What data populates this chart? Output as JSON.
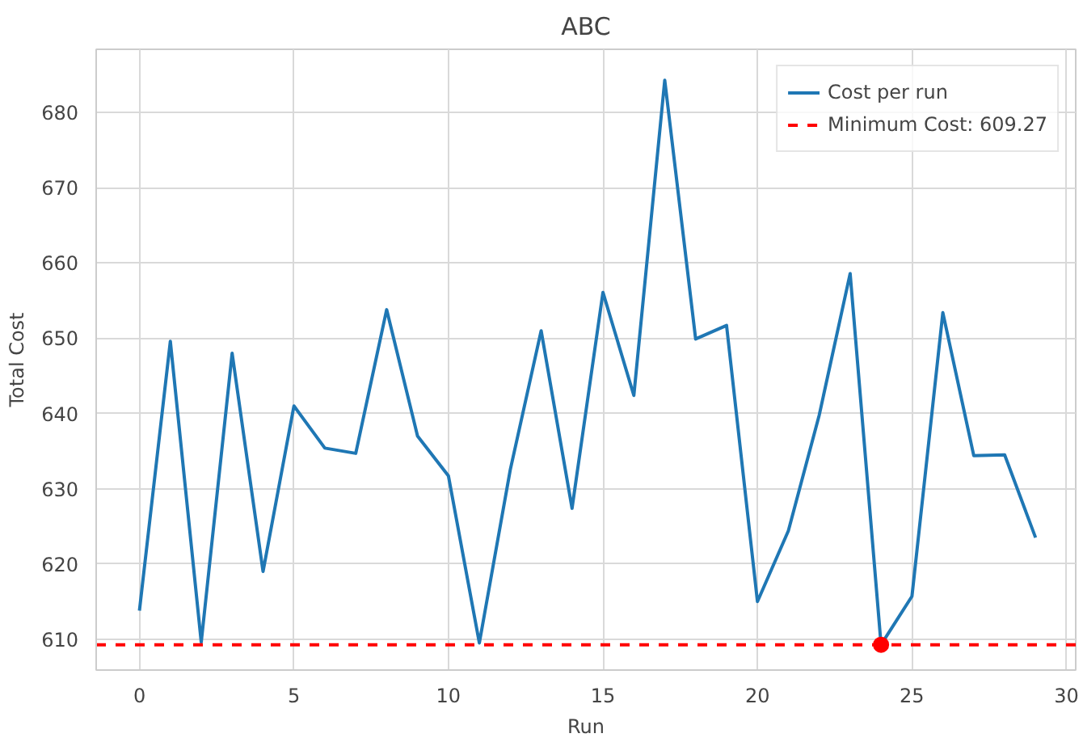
{
  "chart_data": {
    "type": "line",
    "title": "ABC",
    "xlabel": "Run",
    "ylabel": "Total Cost",
    "x": [
      0,
      1,
      2,
      3,
      4,
      5,
      6,
      7,
      8,
      9,
      10,
      11,
      12,
      13,
      14,
      15,
      16,
      17,
      18,
      19,
      20,
      21,
      22,
      23,
      24,
      25,
      26,
      27,
      28,
      29
    ],
    "series": [
      {
        "name": "Cost per run",
        "color": "#1f77b4",
        "values": [
          613.8,
          649.6,
          609.6,
          648.0,
          619.0,
          641.0,
          635.4,
          634.7,
          653.8,
          637.0,
          631.7,
          609.5,
          632.5,
          651.0,
          627.4,
          656.1,
          642.4,
          684.3,
          649.9,
          651.7,
          615.0,
          624.4,
          639.8,
          658.6,
          609.27,
          615.7,
          653.4,
          634.4,
          634.5,
          623.5
        ]
      },
      {
        "type": "scatter",
        "color": "#ff0000",
        "marker": "circle",
        "x": [
          24
        ],
        "values": [
          609.27
        ]
      }
    ],
    "ref_lines": [
      {
        "axis": "y",
        "value": 609.27,
        "label": "Minimum Cost: 609.27",
        "color": "#ff0000",
        "line_style": "dashed"
      }
    ],
    "xlim": [
      -1.4,
      30.3
    ],
    "ylim": [
      605.9,
      688.4
    ],
    "xticks": [
      0,
      5,
      10,
      15,
      20,
      25,
      30
    ],
    "yticks": [
      610,
      620,
      630,
      640,
      650,
      660,
      670,
      680
    ],
    "grid": true,
    "legend": "top right",
    "line_style": "solid"
  }
}
